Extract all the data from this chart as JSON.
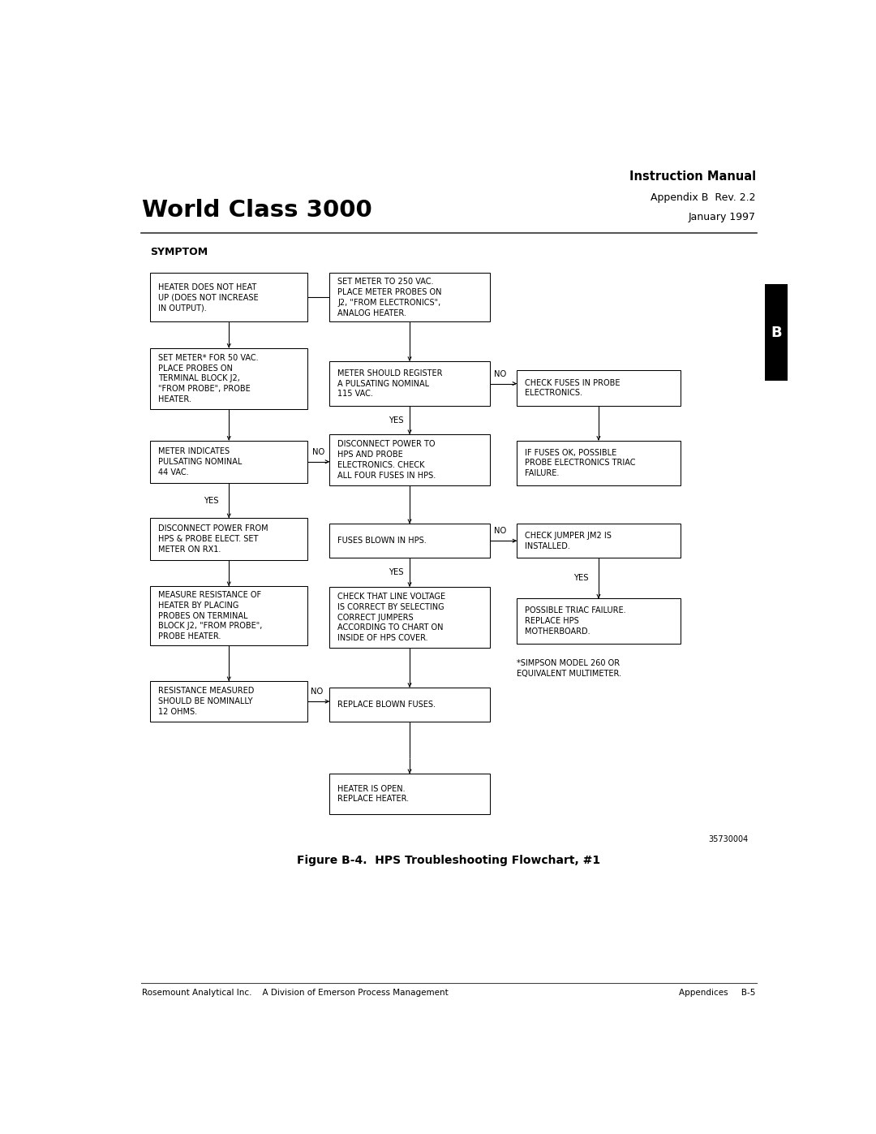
{
  "title_left": "World Class 3000",
  "title_right_line1": "Instruction Manual",
  "title_right_line2": "Appendix B  Rev. 2.2",
  "title_right_line3": "January 1997",
  "symptom_label": "SYMPTOM",
  "figure_caption": "Figure B-4.  HPS Troubleshooting Flowchart, #1",
  "part_number": "35730004",
  "footer_left": "Rosemount Analytical Inc.    A Division of Emerson Process Management",
  "footer_right": "Appendices     B-5",
  "tab_label": "B",
  "note": "*SIMPSON MODEL 260 OR\nEQUIVALENT MULTIMETER.",
  "bg_color": "#ffffff",
  "box_edge_color": "#000000",
  "text_color": "#000000"
}
